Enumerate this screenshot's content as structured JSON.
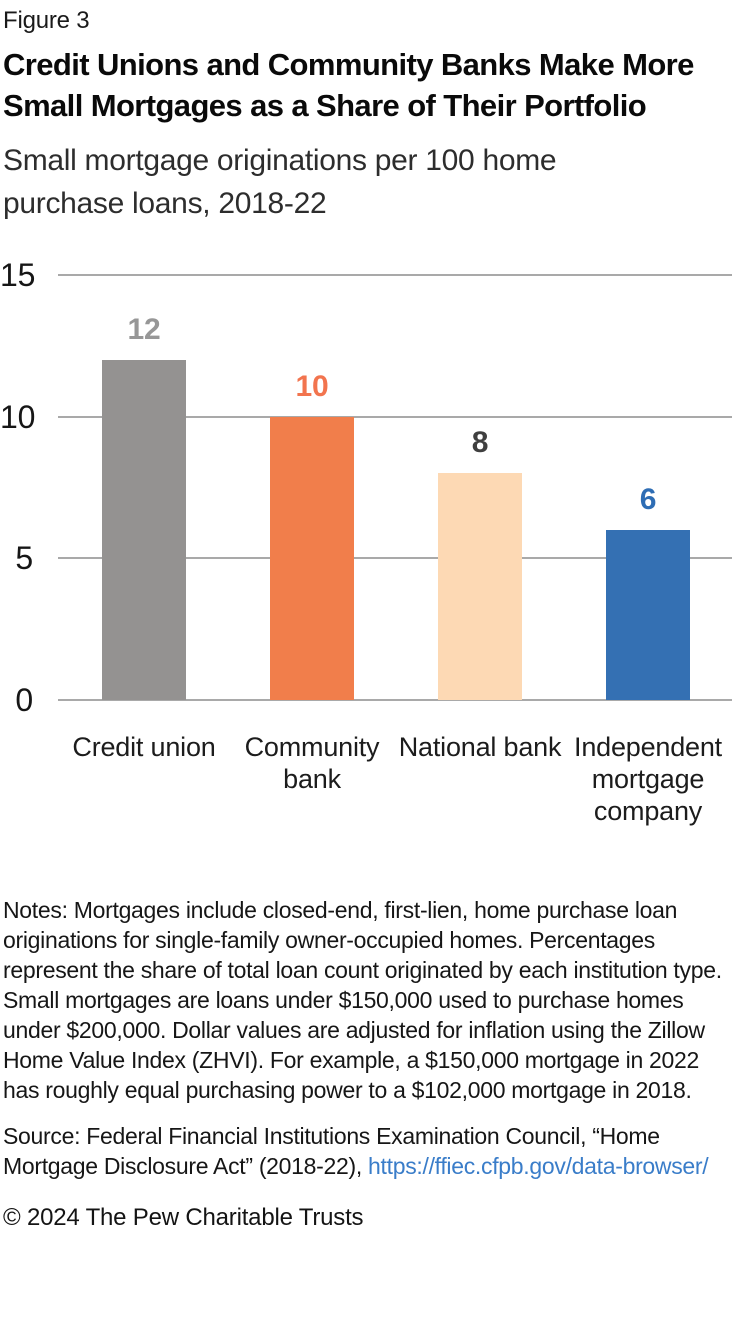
{
  "figure_label": "Figure 3",
  "title": "Credit Unions and Community Banks Make More Small Mortgages as a Share of Their Portfolio",
  "subtitle": "Small mortgage originations per 100 home purchase loans, 2018-22",
  "chart_data": {
    "type": "bar",
    "title": "Credit Unions and Community Banks Make More Small Mortgages as a Share of Their Portfolio",
    "subtitle": "Small mortgage originations per 100 home purchase loans, 2018-22",
    "categories": [
      "Credit union",
      "Community bank",
      "National bank",
      "Independent mortgage company"
    ],
    "values": [
      12,
      10,
      8,
      6
    ],
    "bar_colors": [
      "#949291",
      "#F17E4B",
      "#FDD9B4",
      "#3470B3"
    ],
    "value_label_colors": [
      "#979797",
      "#F2744E",
      "#3F3F3F",
      "#2E6DB4"
    ],
    "xlabel": "",
    "ylabel": "",
    "ylim": [
      0,
      15
    ],
    "yticks": [
      0,
      5,
      10,
      15
    ],
    "grid": true,
    "gridline_color": "#a9a9a9",
    "legend": false,
    "data_labels": true
  },
  "notes": "Notes: Mortgages include closed-end, first-lien, home purchase loan originations for single-family owner-occupied homes. Percentages represent the share of total loan count originated by each institution type. Small mortgages are loans under $150,000 used to purchase homes under $200,000. Dollar values are adjusted for inflation using the Zillow Home Value Index (ZHVI). For example, a $150,000 mortgage in 2022 has roughly equal purchasing power to a $102,000 mortgage in 2018.",
  "source": {
    "text": "Source: Federal Financial Institutions Examination Council, “Home Mortgage Disclosure Act” (2018-22), ",
    "link_text": "https://ffiec.cfpb.gov/data-browser/",
    "link_color": "#3a7dc9"
  },
  "copyright": "© 2024 The Pew Charitable Trusts"
}
